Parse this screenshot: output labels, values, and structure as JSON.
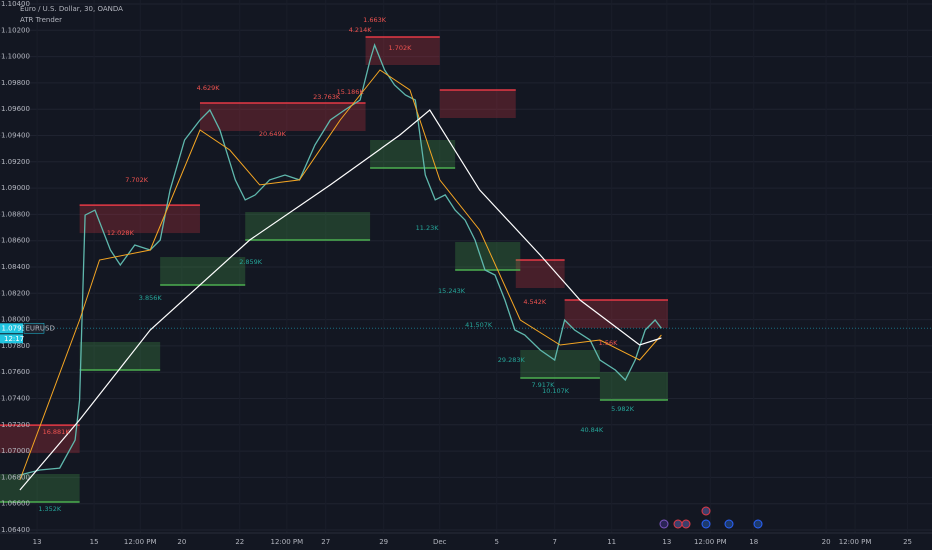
{
  "chart_data": {
    "type": "line",
    "title": "Euro / U.S. Dollar, 30, OANDA",
    "subtitle": "ATR Trender",
    "symbol": "EURUSD",
    "countdown": "12:17",
    "last": {
      "value": 1.07934,
      "label": "1.07934"
    },
    "last_color": "#22c5e0",
    "grid": true,
    "xlim": [
      0,
      103
    ],
    "ylim": [
      1.064,
      1.104
    ],
    "xticks": [
      {
        "value": 4.1,
        "label": "13"
      },
      {
        "value": 10.4,
        "label": "15"
      },
      {
        "value": 15.5,
        "label": "12:00 PM"
      },
      {
        "value": 20.1,
        "label": "20"
      },
      {
        "value": 26.5,
        "label": "22"
      },
      {
        "value": 31.7,
        "label": "12:00 PM"
      },
      {
        "value": 36.0,
        "label": "27"
      },
      {
        "value": 42.4,
        "label": "29"
      },
      {
        "value": 48.6,
        "label": "Dec"
      },
      {
        "value": 54.9,
        "label": "5"
      },
      {
        "value": 61.3,
        "label": "7"
      },
      {
        "value": 67.6,
        "label": "11"
      },
      {
        "value": 73.7,
        "label": "13"
      },
      {
        "value": 78.5,
        "label": "12:00 PM"
      },
      {
        "value": 83.3,
        "label": "18"
      },
      {
        "value": 91.3,
        "label": "20"
      },
      {
        "value": 94.5,
        "label": "12:00 PM"
      },
      {
        "value": 100.3,
        "label": "25"
      }
    ],
    "yticks": [
      {
        "value": 1.064,
        "label": "1.06400"
      },
      {
        "value": 1.066,
        "label": "1.06600"
      },
      {
        "value": 1.068,
        "label": "1.06800"
      },
      {
        "value": 1.07,
        "label": "1.07000"
      },
      {
        "value": 1.072,
        "label": "1.07200"
      },
      {
        "value": 1.074,
        "label": "1.07400"
      },
      {
        "value": 1.076,
        "label": "1.07600"
      },
      {
        "value": 1.078,
        "label": "1.07800"
      },
      {
        "value": 1.08,
        "label": "1.08000"
      },
      {
        "value": 1.082,
        "label": "1.08200"
      },
      {
        "value": 1.084,
        "label": "1.08400"
      },
      {
        "value": 1.086,
        "label": "1.08600"
      },
      {
        "value": 1.088,
        "label": "1.08800"
      },
      {
        "value": 1.09,
        "label": "1.09000"
      },
      {
        "value": 1.092,
        "label": "1.09200"
      },
      {
        "value": 1.094,
        "label": "1.09400"
      },
      {
        "value": 1.096,
        "label": "1.09600"
      },
      {
        "value": 1.098,
        "label": "1.09800"
      },
      {
        "value": 1.1,
        "label": "1.10000"
      },
      {
        "value": 1.102,
        "label": "1.10200"
      },
      {
        "value": 1.104,
        "label": "1.10400"
      }
    ],
    "series": [
      {
        "color": "#5fb8ad",
        "width": 1.3,
        "x": [
          2.2,
          4.4,
          6.6,
          8.3,
          8.8,
          9.4,
          10.5,
          12.2,
          13.3,
          14.9,
          16.6,
          17.7,
          18.8,
          20.4,
          22.1,
          23.2,
          24.3,
          26.0,
          27.1,
          28.2,
          29.8,
          31.5,
          33.1,
          34.8,
          36.5,
          38.1,
          39.8,
          40.9,
          41.4,
          42.5,
          43.6,
          44.8,
          45.9,
          47.0,
          48.1,
          49.2,
          50.3,
          51.4,
          52.5,
          53.6,
          54.7,
          55.8,
          56.9,
          58.0,
          59.7,
          61.3,
          62.4,
          63.5,
          65.2,
          66.3,
          68.0,
          69.1,
          70.2,
          71.3,
          72.4,
          73.1
        ],
        "values": [
          1.06818,
          1.06856,
          1.06871,
          1.07084,
          1.07389,
          1.08795,
          1.08833,
          1.08529,
          1.08415,
          1.08567,
          1.08529,
          1.08605,
          1.08986,
          1.09366,
          1.09518,
          1.09594,
          1.09442,
          1.09062,
          1.0891,
          1.08948,
          1.09062,
          1.091,
          1.09062,
          1.09328,
          1.09518,
          1.09594,
          1.0967,
          1.09974,
          1.10088,
          1.09898,
          1.09784,
          1.09708,
          1.0967,
          1.091,
          1.0891,
          1.08948,
          1.08833,
          1.08757,
          1.08605,
          1.08377,
          1.08339,
          1.08149,
          1.07921,
          1.07883,
          1.07769,
          1.07693,
          1.07997,
          1.07921,
          1.07845,
          1.07693,
          1.07617,
          1.07541,
          1.07693,
          1.07921,
          1.07997,
          1.07934
        ]
      },
      {
        "color": "#f5a623",
        "width": 1,
        "x": [
          2.2,
          8.8,
          11.0,
          16.6,
          22.1,
          25.4,
          28.7,
          33.1,
          37.6,
          42.0,
          45.3,
          48.6,
          53.0,
          57.5,
          61.9,
          66.3,
          70.7,
          73.1
        ],
        "values": [
          1.0678,
          1.07997,
          1.08453,
          1.08529,
          1.09442,
          1.0929,
          1.09024,
          1.09062,
          1.09518,
          1.09898,
          1.09746,
          1.09062,
          1.08681,
          1.07997,
          1.07807,
          1.07845,
          1.07693,
          1.07883
        ]
      },
      {
        "color": "#ffffff",
        "width": 1.2,
        "x": [
          2.2,
          8.8,
          16.6,
          27.6,
          36.5,
          44.2,
          47.5,
          53.0,
          59.7,
          64.1,
          68.5,
          70.7,
          73.1
        ],
        "values": [
          1.06704,
          1.07237,
          1.07921,
          1.08605,
          1.09024,
          1.09404,
          1.09594,
          1.08986,
          1.08491,
          1.08149,
          1.07921,
          1.07807,
          1.0786
        ]
      }
    ],
    "bands": [
      {
        "color": "#e53945",
        "side": "upper",
        "x": [
          0,
          8.8,
          22.1,
          40.4,
          48.6,
          57.0,
          62.4,
          73.6
        ],
        "values": [
          1.07198,
          1.08871,
          1.09647,
          1.10149,
          1.09746,
          1.08453,
          1.08149,
          1.08149
        ]
      },
      {
        "color": "#4caf50",
        "side": "lower",
        "x": [
          0,
          8.8,
          17.7,
          27.1,
          40.9,
          50.3,
          57.5,
          66.3,
          73.6
        ],
        "values": [
          1.06613,
          1.07617,
          1.08263,
          1.08605,
          1.09153,
          1.08377,
          1.07556,
          1.07389,
          1.07389
        ]
      }
    ],
    "annotations": [
      {
        "text": "1.663K",
        "x": 41.4,
        "y": 1.10278,
        "color": "#f05350"
      },
      {
        "text": "4.214K",
        "x": 39.8,
        "y": 1.10202,
        "color": "#f05350"
      },
      {
        "text": "1.702K",
        "x": 44.2,
        "y": 1.10065,
        "color": "#f05350"
      },
      {
        "text": "4.629K",
        "x": 23.0,
        "y": 1.09761,
        "color": "#f05350"
      },
      {
        "text": "23.763K",
        "x": 36.1,
        "y": 1.09693,
        "color": "#f05350"
      },
      {
        "text": "15.186K",
        "x": 38.7,
        "y": 1.09731,
        "color": "#f05350"
      },
      {
        "text": "20.649K",
        "x": 30.1,
        "y": 1.09411,
        "color": "#f05350"
      },
      {
        "text": "7.702K",
        "x": 15.1,
        "y": 1.09062,
        "color": "#f05350"
      },
      {
        "text": "12.028K",
        "x": 13.3,
        "y": 1.08659,
        "color": "#f05350"
      },
      {
        "text": "16.881K",
        "x": 6.2,
        "y": 1.07145,
        "color": "#f05350"
      },
      {
        "text": "4.542K",
        "x": 59.1,
        "y": 1.08134,
        "color": "#f05350"
      },
      {
        "text": "1.56K",
        "x": 67.2,
        "y": 1.07822,
        "color": "#f05350"
      },
      {
        "text": "2.859K",
        "x": 27.7,
        "y": 1.08438,
        "color": "#26a69a"
      },
      {
        "text": "1.352K",
        "x": 5.5,
        "y": 1.0656,
        "color": "#26a69a"
      },
      {
        "text": "11.23K",
        "x": 47.2,
        "y": 1.08697,
        "color": "#26a69a"
      },
      {
        "text": "15.243K",
        "x": 49.9,
        "y": 1.08218,
        "color": "#26a69a"
      },
      {
        "text": "41.507K",
        "x": 52.9,
        "y": 1.07959,
        "color": "#26a69a"
      },
      {
        "text": "29.283K",
        "x": 56.5,
        "y": 1.07693,
        "color": "#26a69a"
      },
      {
        "text": "7.917K",
        "x": 60.0,
        "y": 1.07503,
        "color": "#26a69a"
      },
      {
        "text": "10.107K",
        "x": 61.4,
        "y": 1.07457,
        "color": "#26a69a"
      },
      {
        "text": "40.84K",
        "x": 65.4,
        "y": 1.0716,
        "color": "#26a69a"
      },
      {
        "text": "5.982K",
        "x": 68.8,
        "y": 1.0732,
        "color": "#26a69a"
      },
      {
        "text": "3.856K",
        "x": 16.6,
        "y": 1.08164,
        "color": "#26a69a"
      }
    ]
  }
}
